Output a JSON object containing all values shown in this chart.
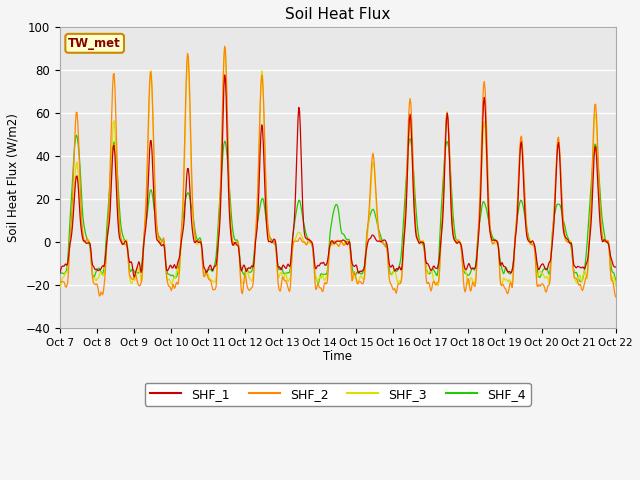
{
  "title": "Soil Heat Flux",
  "ylabel": "Soil Heat Flux (W/m2)",
  "xlabel": "Time",
  "ylim": [
    -40,
    100
  ],
  "grid": true,
  "plot_bg_color": "#e8e8e8",
  "fig_bg_color": "#f5f5f5",
  "series_colors": {
    "SHF_1": "#cc0000",
    "SHF_2": "#ff8800",
    "SHF_3": "#dddd00",
    "SHF_4": "#22cc00"
  },
  "annotation_text": "TW_met",
  "annotation_color": "#880000",
  "annotation_bg": "#ffffcc",
  "annotation_border": "#cc8800",
  "xtick_labels": [
    "Oct 7",
    "Oct 8",
    "Oct 9",
    "Oct 10",
    "Oct 11",
    "Oct 12",
    "Oct 13",
    "Oct 14",
    "Oct 15",
    "Oct 16",
    "Oct 17",
    "Oct 18",
    "Oct 19",
    "Oct 20",
    "Oct 21",
    "Oct 22"
  ],
  "n_days": 15,
  "points_per_day": 48
}
